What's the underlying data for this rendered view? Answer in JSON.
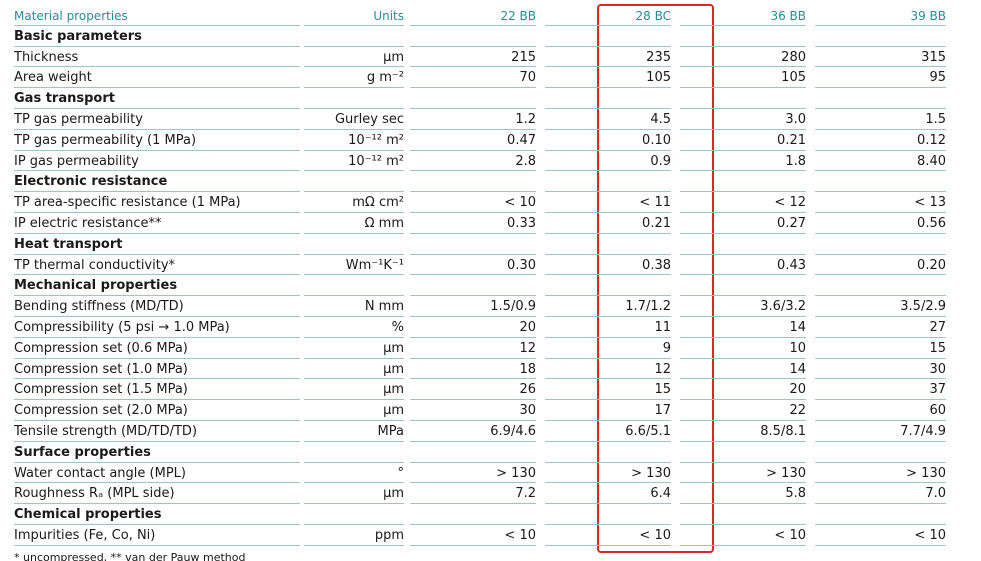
{
  "header": [
    "Material properties",
    "Units",
    "22 BB",
    "28 BC",
    "36 BB",
    "39 BB"
  ],
  "sections": [
    {
      "title": "Basic parameters",
      "rows": [
        [
          "Thickness",
          "µm",
          "215",
          "235",
          "280",
          "315"
        ],
        [
          "Area weight",
          "g m⁻²",
          "70",
          "105",
          "105",
          "95"
        ]
      ]
    },
    {
      "title": "Gas transport",
      "rows": [
        [
          "TP gas permeability",
          "Gurley sec",
          "1.2",
          "4.5",
          "3.0",
          "1.5"
        ],
        [
          "TP gas permeability (1 MPa)",
          "10⁻¹² m²",
          "0.47",
          "0.10",
          "0.21",
          "0.12"
        ],
        [
          "IP gas permeability",
          "10⁻¹² m²",
          "2.8",
          "0.9",
          "1.8",
          "8.40"
        ]
      ]
    },
    {
      "title": "Electronic resistance",
      "rows": [
        [
          "TP area-specific resistance (1 MPa)",
          "mΩ cm²",
          "< 10",
          "< 11",
          "< 12",
          "< 13"
        ],
        [
          "IP electric resistance**",
          "Ω mm",
          "0.33",
          "0.21",
          "0.27",
          "0.56"
        ]
      ]
    },
    {
      "title": "Heat transport",
      "rows": [
        [
          "TP thermal conductivity*",
          "Wm⁻¹K⁻¹",
          "0.30",
          "0.38",
          "0.43",
          "0.20"
        ]
      ]
    },
    {
      "title": "Mechanical properties",
      "rows": [
        [
          "Bending stiffness (MD/TD)",
          "N mm",
          "1.5/0.9",
          "1.7/1.2",
          "3.6/3.2",
          "3.5/2.9"
        ],
        [
          "Compressibility (5 psi → 1.0 MPa)",
          "%",
          "20",
          "11",
          "14",
          "27"
        ],
        [
          "Compression set (0.6 MPa)",
          "µm",
          "12",
          "9",
          "10",
          "15"
        ],
        [
          "Compression set (1.0 MPa)",
          "µm",
          "18",
          "12",
          "14",
          "30"
        ],
        [
          "Compression set (1.5 MPa)",
          "µm",
          "26",
          "15",
          "20",
          "37"
        ],
        [
          "Compression set (2.0 MPa)",
          "µm",
          "30",
          "17",
          "22",
          "60"
        ],
        [
          "Tensile strength (MD/TD/TD)",
          "MPa",
          "6.9/4.6",
          "6.6/5.1",
          "8.5/8.1",
          "7.7/4.9"
        ]
      ]
    },
    {
      "title": "Surface properties",
      "rows": [
        [
          "Water contact angle (MPL)",
          "°",
          "> 130",
          "> 130",
          "> 130",
          "> 130"
        ],
        [
          "Roughness Rₐ (MPL side)",
          "µm",
          "7.2",
          "6.4",
          "5.8",
          "7.0"
        ]
      ]
    },
    {
      "title": "Chemical properties",
      "rows": [
        [
          "Impurities (Fe, Co, Ni)",
          "ppm",
          "< 10",
          "< 10",
          "< 10",
          "< 10"
        ]
      ]
    }
  ],
  "footnote": "* uncompressed, ** van der Pauw method"
}
